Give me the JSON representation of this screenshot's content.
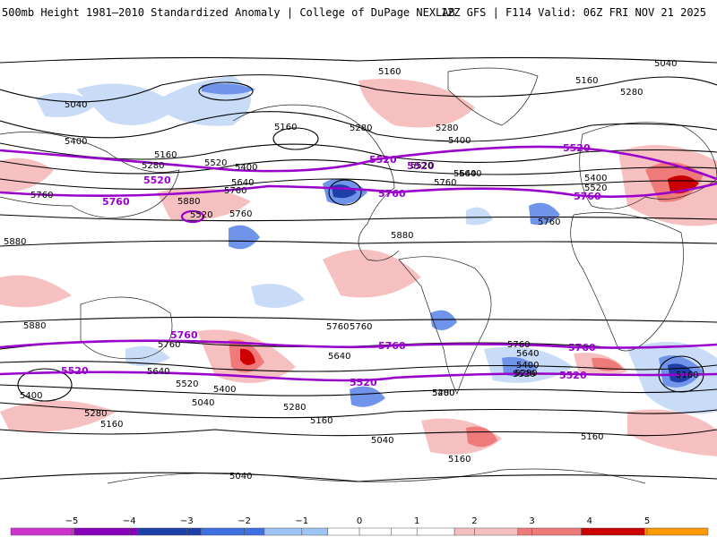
{
  "header": {
    "left": "500mb Height 1981–2010 Standardized Anomaly | College of DuPage NEXLAB",
    "right": "12Z GFS | F114 Valid: 06Z FRI NOV 21 2025"
  },
  "map": {
    "thick_contours": {
      "color": "#9900cc",
      "labels": [
        {
          "text": "5520"
        },
        {
          "text": "5520"
        },
        {
          "text": "5520"
        },
        {
          "text": "5520"
        },
        {
          "text": "5760"
        },
        {
          "text": "5760"
        },
        {
          "text": "5760"
        },
        {
          "text": "5760"
        },
        {
          "text": "5760"
        },
        {
          "text": "5760"
        },
        {
          "text": "5520"
        },
        {
          "text": "5520"
        },
        {
          "text": "5520"
        }
      ]
    },
    "contour_labels": [
      {
        "text": "5160"
      },
      {
        "text": "5040"
      },
      {
        "text": "5160"
      },
      {
        "text": "5280"
      },
      {
        "text": "5040"
      },
      {
        "text": "5400"
      },
      {
        "text": "5160"
      },
      {
        "text": "5280"
      },
      {
        "text": "5520"
      },
      {
        "text": "5400"
      },
      {
        "text": "5160"
      },
      {
        "text": "5280"
      },
      {
        "text": "5640"
      },
      {
        "text": "5760"
      },
      {
        "text": "5880"
      },
      {
        "text": "5760"
      },
      {
        "text": "5640"
      },
      {
        "text": "5280"
      },
      {
        "text": "5400"
      },
      {
        "text": "5520"
      },
      {
        "text": "5640"
      },
      {
        "text": "5760"
      },
      {
        "text": "5880"
      },
      {
        "text": "5400"
      },
      {
        "text": "5520"
      },
      {
        "text": "5760"
      },
      {
        "text": "5880"
      },
      {
        "text": "5880"
      },
      {
        "text": "5760"
      },
      {
        "text": "5760"
      },
      {
        "text": "5640"
      },
      {
        "text": "5520"
      },
      {
        "text": "5400"
      },
      {
        "text": "5280"
      },
      {
        "text": "5160"
      },
      {
        "text": "5040"
      },
      {
        "text": "5760"
      },
      {
        "text": "5640"
      },
      {
        "text": "5520"
      },
      {
        "text": "5400"
      },
      {
        "text": "5280"
      },
      {
        "text": "5160"
      },
      {
        "text": "5040"
      },
      {
        "text": "5160"
      },
      {
        "text": "5400"
      },
      {
        "text": "5280"
      },
      {
        "text": "5160"
      },
      {
        "text": "5040"
      },
      {
        "text": "5760"
      },
      {
        "text": "5640"
      },
      {
        "text": "5400"
      },
      {
        "text": "5280"
      },
      {
        "text": "5160"
      },
      {
        "text": "5520"
      },
      {
        "text": "5760"
      }
    ]
  },
  "colorbar": {
    "ticks": [
      "−5",
      "−4",
      "−3",
      "−2",
      "−1",
      "0",
      "1",
      "2",
      "3",
      "4",
      "5"
    ],
    "colors": [
      "#cc33cc",
      "#8800bb",
      "#1e3fa8",
      "#3f6fe0",
      "#9ec3f5",
      "#ffffff",
      "#ffffff",
      "#f7c0c0",
      "#ef7a7a",
      "#cc0000",
      "#ff9900"
    ]
  }
}
